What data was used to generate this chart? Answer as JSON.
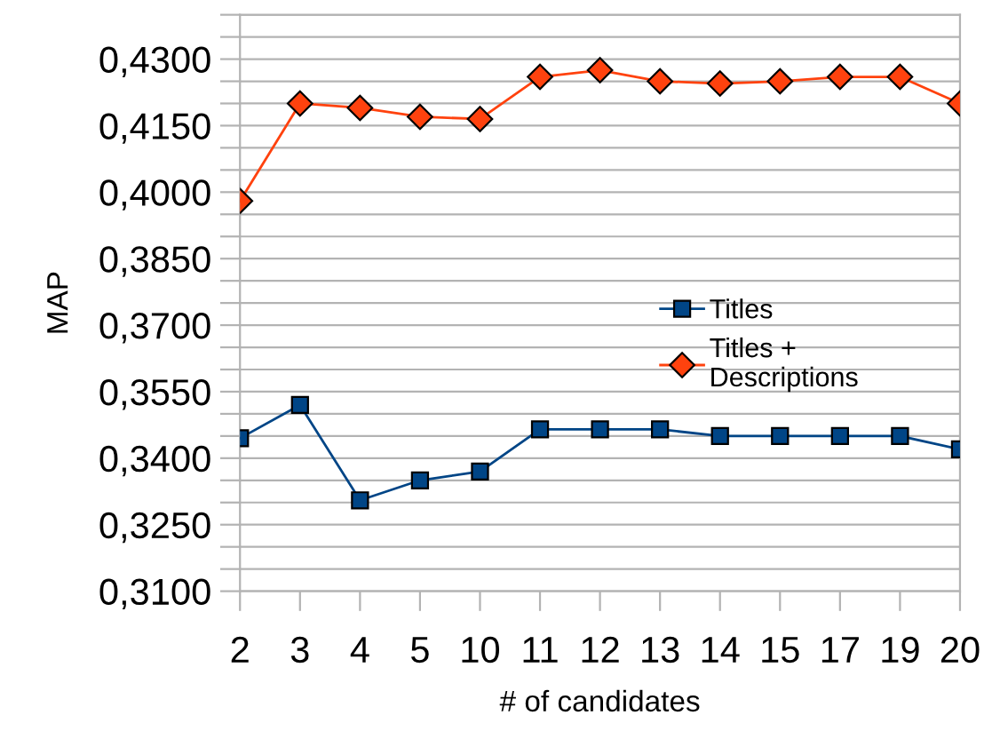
{
  "chart_data": {
    "type": "line",
    "xlabel": "# of candidates",
    "ylabel": "MAP",
    "categories": [
      "2",
      "3",
      "4",
      "5",
      "10",
      "11",
      "12",
      "13",
      "14",
      "15",
      "17",
      "19",
      "20"
    ],
    "series": [
      {
        "name": "Titles",
        "color": "#004586",
        "marker": "square",
        "values": [
          0.3445,
          0.352,
          0.3305,
          0.335,
          0.337,
          0.3465,
          0.3465,
          0.3465,
          0.345,
          0.345,
          0.345,
          0.345,
          0.342
        ]
      },
      {
        "name": "Titles + Descriptions",
        "color": "#ff420e",
        "marker": "diamond",
        "values": [
          0.398,
          0.42,
          0.419,
          0.417,
          0.4165,
          0.426,
          0.4275,
          0.425,
          0.4245,
          0.425,
          0.426,
          0.426,
          0.42
        ]
      }
    ],
    "ylim": [
      0.31,
      0.44
    ],
    "yticks": [
      {
        "value": 0.31,
        "label": "0,3100"
      },
      {
        "value": 0.315,
        "label": null
      },
      {
        "value": 0.32,
        "label": null
      },
      {
        "value": 0.325,
        "label": "0,3250"
      },
      {
        "value": 0.33,
        "label": null
      },
      {
        "value": 0.335,
        "label": null
      },
      {
        "value": 0.34,
        "label": "0,3400"
      },
      {
        "value": 0.345,
        "label": null
      },
      {
        "value": 0.35,
        "label": null
      },
      {
        "value": 0.355,
        "label": "0,3550"
      },
      {
        "value": 0.36,
        "label": null
      },
      {
        "value": 0.365,
        "label": null
      },
      {
        "value": 0.37,
        "label": "0,3700"
      },
      {
        "value": 0.375,
        "label": null
      },
      {
        "value": 0.38,
        "label": null
      },
      {
        "value": 0.385,
        "label": "0,3850"
      },
      {
        "value": 0.39,
        "label": null
      },
      {
        "value": 0.395,
        "label": null
      },
      {
        "value": 0.4,
        "label": "0,4000"
      },
      {
        "value": 0.405,
        "label": null
      },
      {
        "value": 0.41,
        "label": null
      },
      {
        "value": 0.415,
        "label": "0,4150"
      },
      {
        "value": 0.42,
        "label": null
      },
      {
        "value": 0.425,
        "label": null
      },
      {
        "value": 0.43,
        "label": "0,4300"
      },
      {
        "value": 0.435,
        "label": null
      },
      {
        "value": 0.44,
        "label": null
      }
    ],
    "grid": "y",
    "legend": "right",
    "line_style": "solid"
  }
}
